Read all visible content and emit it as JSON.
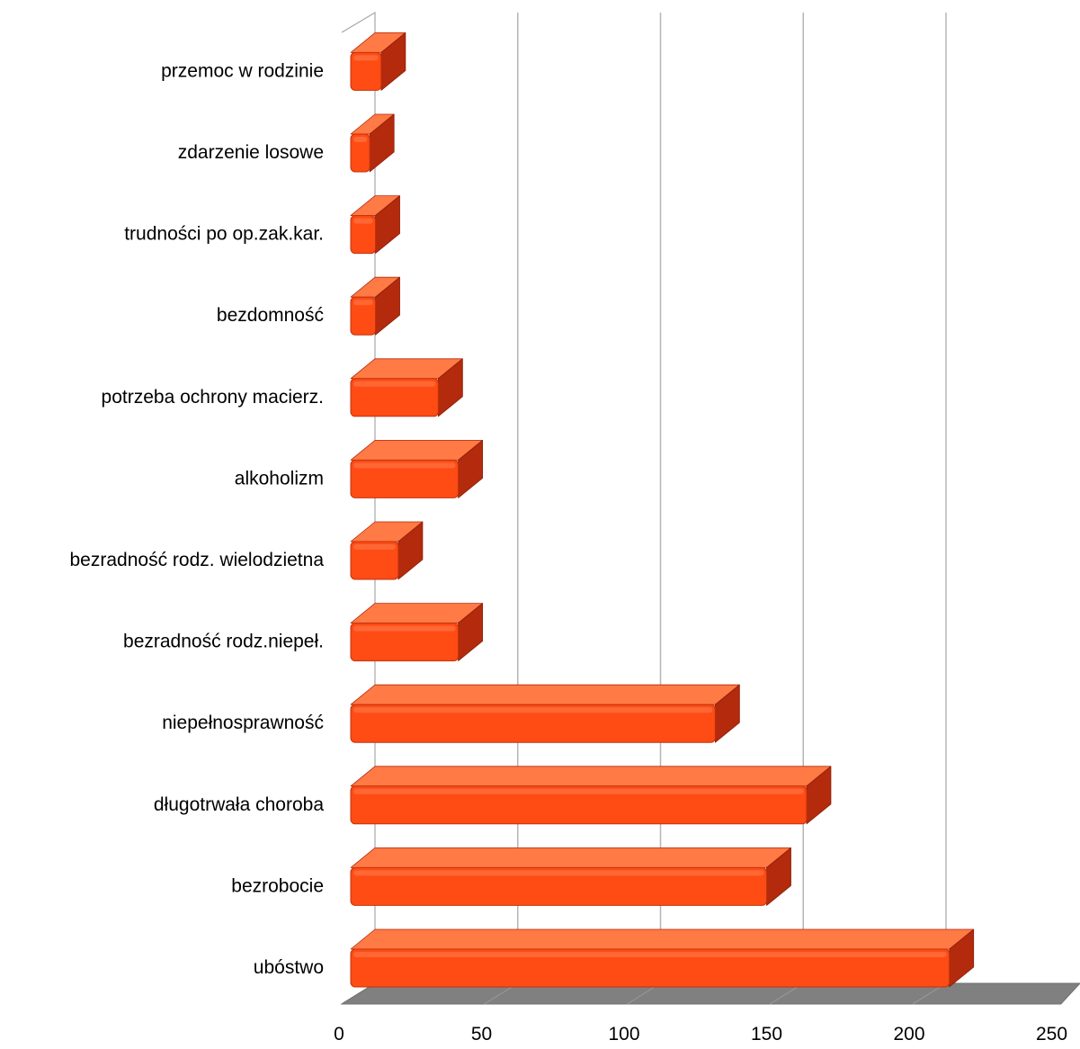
{
  "chart_data": {
    "type": "bar",
    "orientation": "horizontal",
    "style": "3d",
    "categories": [
      "ubóstwo",
      "bezrobocie",
      "długotrwała choroba",
      "niepełnosprawność",
      "bezradność rodz.niepeł.",
      "bezradność rodz. wielodzietna",
      "alkoholizm",
      "potrzeba ochrony macierz.",
      "bezdomność",
      "trudności po op.zak.kar.",
      "zdarzenie losowe",
      "przemoc w rodzinie"
    ],
    "values": [
      204,
      140,
      154,
      122,
      32,
      11,
      32,
      25,
      3,
      3,
      1,
      5
    ],
    "xlim": [
      0,
      250
    ],
    "xticks": [
      "0",
      "50",
      "100",
      "150",
      "200",
      "250"
    ],
    "grid": true,
    "legend": "none",
    "colors": {
      "bar_front": "#ff4b14",
      "bar_side": "#b32a0c",
      "bar_top": "#ff7a45",
      "floor": "#808080",
      "gridline": "#b5b5b5",
      "wall": "#a6a6a6"
    }
  }
}
